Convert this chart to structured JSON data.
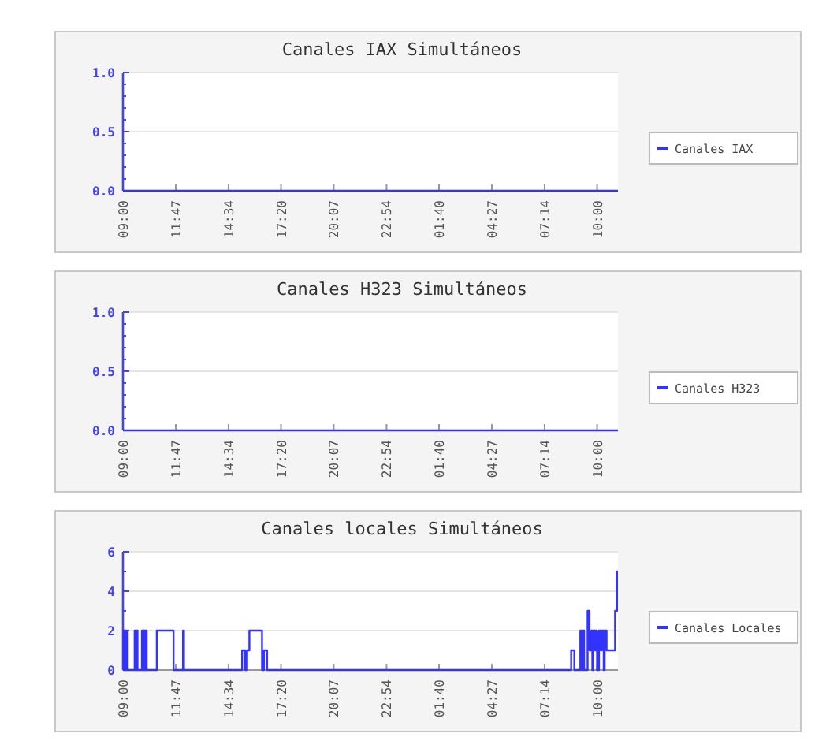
{
  "chart_data": [
    {
      "type": "step",
      "title": "Canales IAX Simultáneos",
      "xlim": [
        "2000-01-01T09:00",
        "2000-01-02T11:06"
      ],
      "xticks": [
        {
          "value": "2000-01-01T09:00",
          "label": "09:00"
        },
        {
          "value": "2000-01-01T11:47",
          "label": "11:47"
        },
        {
          "value": "2000-01-01T14:34",
          "label": "14:34"
        },
        {
          "value": "2000-01-01T17:20",
          "label": "17:20"
        },
        {
          "value": "2000-01-01T20:07",
          "label": "20:07"
        },
        {
          "value": "2000-01-01T22:54",
          "label": "22:54"
        },
        {
          "value": "2000-01-02T01:40",
          "label": "01:40"
        },
        {
          "value": "2000-01-02T04:27",
          "label": "04:27"
        },
        {
          "value": "2000-01-02T07:14",
          "label": "07:14"
        },
        {
          "value": "2000-01-02T10:00",
          "label": "10:00"
        }
      ],
      "ylim": [
        0,
        1
      ],
      "yticks": [
        {
          "value": 0,
          "label": "0.0"
        },
        {
          "value": 0.1,
          "label": null
        },
        {
          "value": 0.2,
          "label": null
        },
        {
          "value": 0.3,
          "label": null
        },
        {
          "value": 0.4,
          "label": null
        },
        {
          "value": 0.5,
          "label": "0.5"
        },
        {
          "value": 0.6,
          "label": null
        },
        {
          "value": 0.7,
          "label": null
        },
        {
          "value": 0.8,
          "label": null
        },
        {
          "value": 0.9,
          "label": null
        },
        {
          "value": 1,
          "label": "1.0"
        }
      ],
      "grid": "y",
      "legend": "right",
      "series": [
        {
          "name": "Canales IAX",
          "color": "#3333ff",
          "x": [
            "2000-01-01T09:00",
            "2000-01-02T11:06"
          ],
          "values": [
            0,
            0
          ]
        }
      ]
    },
    {
      "type": "step",
      "title": "Canales H323 Simultáneos",
      "xlim": [
        "2000-01-01T09:00",
        "2000-01-02T11:06"
      ],
      "xticks": [
        {
          "value": "2000-01-01T09:00",
          "label": "09:00"
        },
        {
          "value": "2000-01-01T11:47",
          "label": "11:47"
        },
        {
          "value": "2000-01-01T14:34",
          "label": "14:34"
        },
        {
          "value": "2000-01-01T17:20",
          "label": "17:20"
        },
        {
          "value": "2000-01-01T20:07",
          "label": "20:07"
        },
        {
          "value": "2000-01-01T22:54",
          "label": "22:54"
        },
        {
          "value": "2000-01-02T01:40",
          "label": "01:40"
        },
        {
          "value": "2000-01-02T04:27",
          "label": "04:27"
        },
        {
          "value": "2000-01-02T07:14",
          "label": "07:14"
        },
        {
          "value": "2000-01-02T10:00",
          "label": "10:00"
        }
      ],
      "ylim": [
        0,
        1
      ],
      "yticks": [
        {
          "value": 0,
          "label": "0.0"
        },
        {
          "value": 0.1,
          "label": null
        },
        {
          "value": 0.2,
          "label": null
        },
        {
          "value": 0.3,
          "label": null
        },
        {
          "value": 0.4,
          "label": null
        },
        {
          "value": 0.5,
          "label": "0.5"
        },
        {
          "value": 0.6,
          "label": null
        },
        {
          "value": 0.7,
          "label": null
        },
        {
          "value": 0.8,
          "label": null
        },
        {
          "value": 0.9,
          "label": null
        },
        {
          "value": 1,
          "label": "1.0"
        }
      ],
      "grid": "y",
      "legend": "right",
      "series": [
        {
          "name": "Canales H323",
          "color": "#3333ff",
          "x": [
            "2000-01-01T09:00",
            "2000-01-02T11:06"
          ],
          "values": [
            0,
            0
          ]
        }
      ]
    },
    {
      "type": "step",
      "title": "Canales locales Simultáneos",
      "xlim": [
        "2000-01-01T09:00",
        "2000-01-02T11:06"
      ],
      "xticks": [
        {
          "value": "2000-01-01T09:00",
          "label": "09:00"
        },
        {
          "value": "2000-01-01T11:47",
          "label": "11:47"
        },
        {
          "value": "2000-01-01T14:34",
          "label": "14:34"
        },
        {
          "value": "2000-01-01T17:20",
          "label": "17:20"
        },
        {
          "value": "2000-01-01T20:07",
          "label": "20:07"
        },
        {
          "value": "2000-01-01T22:54",
          "label": "22:54"
        },
        {
          "value": "2000-01-02T01:40",
          "label": "01:40"
        },
        {
          "value": "2000-01-02T04:27",
          "label": "04:27"
        },
        {
          "value": "2000-01-02T07:14",
          "label": "07:14"
        },
        {
          "value": "2000-01-02T10:00",
          "label": "10:00"
        }
      ],
      "ylim": [
        0,
        6
      ],
      "yticks": [
        0,
        {
          "value": 1,
          "label": null
        },
        2,
        {
          "value": 3,
          "label": null
        },
        4,
        {
          "value": 5,
          "label": null
        },
        6
      ],
      "grid": "y",
      "legend": "right",
      "series": [
        {
          "name": "Canales Locales",
          "color": "#3333ff",
          "x": [
            "2000-01-01T09:00",
            "2000-01-01T09:02",
            "2000-01-01T09:04",
            "2000-01-01T09:05",
            "2000-01-01T09:07",
            "2000-01-01T09:09",
            "2000-01-01T09:13",
            "2000-01-01T09:15",
            "2000-01-01T09:37",
            "2000-01-01T09:38",
            "2000-01-01T09:40",
            "2000-01-01T09:42",
            "2000-01-01T09:43",
            "2000-01-01T09:46",
            "2000-01-01T10:00",
            "2000-01-01T10:02",
            "2000-01-01T10:04",
            "2000-01-01T10:05",
            "2000-01-01T10:07",
            "2000-01-01T10:09",
            "2000-01-01T10:12",
            "2000-01-01T10:15",
            "2000-01-01T10:47",
            "2000-01-01T11:40",
            "2000-01-01T12:10",
            "2000-01-01T12:13",
            "2000-01-01T15:17",
            "2000-01-01T15:27",
            "2000-01-01T15:33",
            "2000-01-01T15:40",
            "2000-01-01T16:20",
            "2000-01-01T16:26",
            "2000-01-01T16:36",
            "2000-01-02T08:38",
            "2000-01-02T08:48",
            "2000-01-02T09:07",
            "2000-01-02T09:12",
            "2000-01-02T09:15",
            "2000-01-02T09:19",
            "2000-01-02T09:30",
            "2000-01-02T09:36",
            "2000-01-02T09:42",
            "2000-01-02T09:45",
            "2000-01-02T09:48",
            "2000-01-02T09:54",
            "2000-01-02T09:57",
            "2000-01-02T10:00",
            "2000-01-02T10:06",
            "2000-01-02T10:12",
            "2000-01-02T10:15",
            "2000-01-02T10:21",
            "2000-01-02T10:24",
            "2000-01-02T10:30",
            "2000-01-02T10:51",
            "2000-01-02T10:57",
            "2000-01-02T11:03",
            "2000-01-02T11:06"
          ],
          "values": [
            2,
            0,
            2,
            0,
            2,
            0,
            2,
            0,
            2,
            0,
            2,
            0,
            2,
            0,
            2,
            0,
            2,
            0,
            2,
            0,
            2,
            0,
            2,
            0,
            2,
            0,
            1,
            0,
            1,
            2,
            0,
            1,
            0,
            1,
            0,
            2,
            0,
            2,
            0,
            3,
            1,
            2,
            0,
            2,
            1,
            2,
            0,
            2,
            1,
            2,
            0,
            2,
            1,
            1,
            3,
            5,
            5
          ]
        }
      ]
    }
  ]
}
